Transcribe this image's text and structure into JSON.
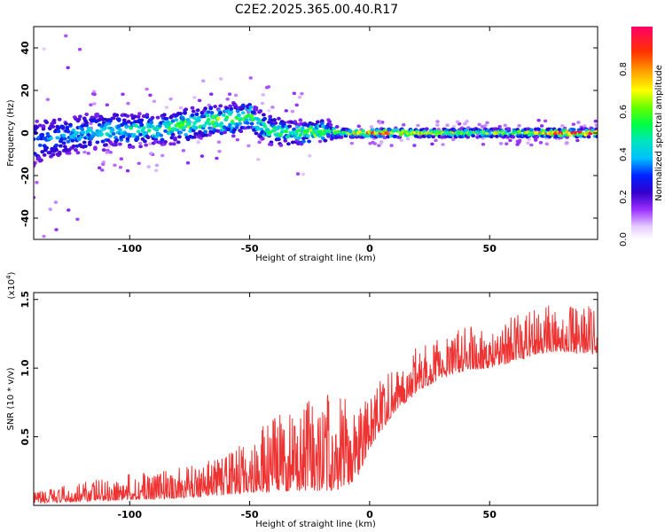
{
  "title": "C2E2.2025.365.00.40.R17",
  "chart_data": [
    {
      "type": "heatmap",
      "xlabel": "Height of straight line (km)",
      "ylabel": "Frequency (Hz)",
      "xlim": [
        -140,
        95
      ],
      "ylim": [
        -50,
        50
      ],
      "xticks": [
        -100,
        -50,
        0,
        50
      ],
      "xtick_labels": [
        "-100",
        "-50",
        "0",
        "50"
      ],
      "yticks": [
        -40,
        -20,
        0,
        20,
        40
      ],
      "ytick_labels": [
        "-40",
        "-20",
        "0",
        "20",
        "40"
      ],
      "colorbar": {
        "label": "Normalized spectral amplitude",
        "range": [
          0,
          1
        ],
        "ticks": [
          0.0,
          0.2,
          0.4,
          0.6,
          0.8
        ],
        "tick_labels": [
          "0.0",
          "0.2",
          "0.4",
          "0.6",
          "0.8"
        ]
      },
      "ridge": {
        "x": [
          -140,
          -130,
          -120,
          -110,
          -100,
          -90,
          -80,
          -70,
          -60,
          -50,
          -45,
          -40,
          -30,
          -20,
          -15,
          -10,
          0,
          10,
          20,
          40,
          60,
          80,
          95
        ],
        "center_freq": [
          -5,
          -2,
          0,
          1,
          1,
          2,
          3,
          5,
          6,
          8,
          3,
          1,
          0,
          1,
          0.5,
          0,
          0,
          0,
          0,
          0,
          0,
          0,
          0
        ],
        "half_width": [
          10,
          9,
          8,
          8,
          7,
          7,
          7,
          7,
          7,
          6,
          6,
          6,
          5,
          4,
          3,
          2,
          2,
          2,
          2,
          2,
          2,
          2,
          2
        ],
        "peak_amplitude": [
          0.2,
          0.25,
          0.3,
          0.35,
          0.35,
          0.4,
          0.45,
          0.5,
          0.55,
          0.5,
          0.4,
          0.45,
          0.5,
          0.6,
          0.55,
          0.5,
          0.85,
          0.9,
          0.6,
          0.6,
          0.55,
          0.9,
          0.8
        ]
      }
    },
    {
      "type": "line",
      "xlabel": "Height of straight line (km)",
      "ylabel": "SNR (10 * v/v)",
      "y_multiplier": "(x10",
      "y_multiplier_exp": "4",
      "y_multiplier_close": ")",
      "xlim": [
        -140,
        95
      ],
      "ylim": [
        0,
        1.55
      ],
      "xticks": [
        -100,
        -50,
        0,
        50
      ],
      "xtick_labels": [
        "-100",
        "-50",
        "0",
        "50"
      ],
      "yticks": [
        0.5,
        1.0,
        1.5
      ],
      "ytick_labels": [
        "0.5",
        "1.0",
        "1.5"
      ],
      "series": [
        {
          "name": "SNR",
          "color": "#ee3333",
          "envelope": {
            "x": [
              -140,
              -120,
              -100,
              -80,
              -60,
              -50,
              -40,
              -30,
              -20,
              -10,
              -5,
              0,
              10,
              20,
              30,
              40,
              50,
              60,
              70,
              80,
              90,
              95
            ],
            "baseline": [
              0.03,
              0.06,
              0.08,
              0.1,
              0.14,
              0.18,
              0.22,
              0.24,
              0.26,
              0.28,
              0.33,
              0.5,
              0.75,
              0.9,
              1.0,
              1.05,
              1.07,
              1.12,
              1.18,
              1.2,
              1.18,
              1.18
            ],
            "spread": [
              0.05,
              0.09,
              0.12,
              0.14,
              0.18,
              0.25,
              0.35,
              0.38,
              0.45,
              0.45,
              0.35,
              0.25,
              0.22,
              0.22,
              0.2,
              0.2,
              0.2,
              0.22,
              0.22,
              0.22,
              0.22,
              0.22
            ]
          }
        }
      ]
    }
  ]
}
